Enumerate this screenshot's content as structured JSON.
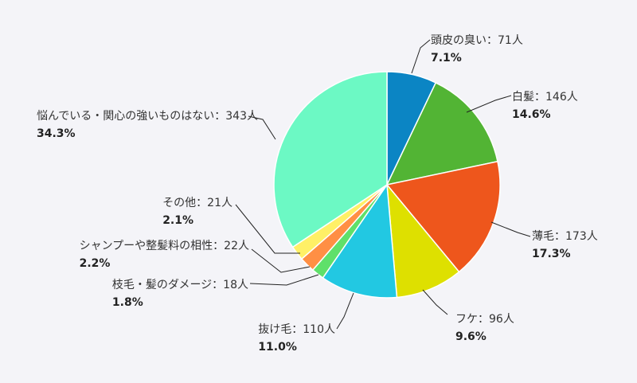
{
  "chart_data": {
    "type": "pie",
    "title": "",
    "slices": [
      {
        "label": "頭皮の臭い：71人",
        "value": 71,
        "percent": "7.1%",
        "color": "#0b85c4"
      },
      {
        "label": "白髪：146人",
        "value": 146,
        "percent": "14.6%",
        "color": "#52b434"
      },
      {
        "label": "薄毛：173人",
        "value": 173,
        "percent": "17.3%",
        "color": "#ee561c"
      },
      {
        "label": "フケ：96人",
        "value": 96,
        "percent": "9.6%",
        "color": "#dee000"
      },
      {
        "label": "抜け毛：110人",
        "value": 110,
        "percent": "11.0%",
        "color": "#22c8e2"
      },
      {
        "label": "枝毛・髪のダメージ：18人",
        "value": 18,
        "percent": "1.8%",
        "color": "#5fe06a"
      },
      {
        "label": "シャンプーや整髪料の相性：22人",
        "value": 22,
        "percent": "2.2%",
        "color": "#ff8f44"
      },
      {
        "label": "その他：21人",
        "value": 21,
        "percent": "2.1%",
        "color": "#fff066"
      },
      {
        "label": "悩んでいる・関心の強いものはない：343人",
        "value": 343,
        "percent": "34.3%",
        "color": "#6cf9c4"
      }
    ]
  }
}
